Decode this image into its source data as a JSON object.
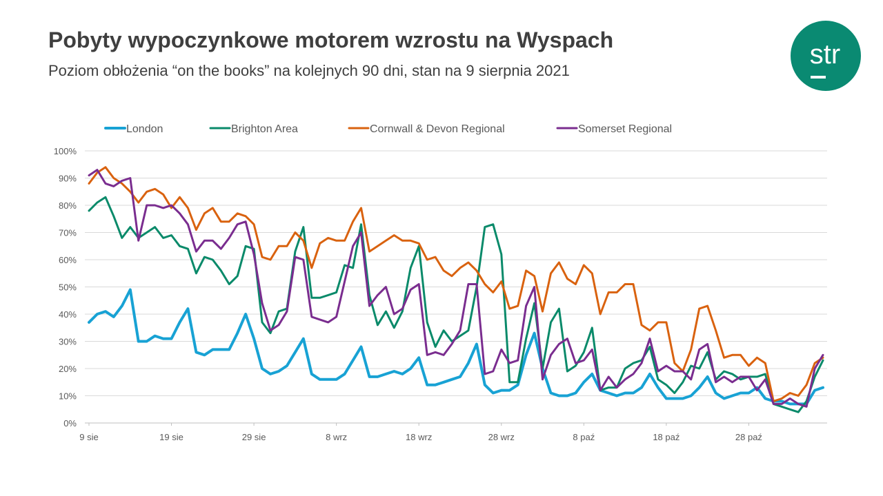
{
  "header": {
    "title": "Pobyty wypoczynkowe motorem wzrostu na Wyspach",
    "subtitle": "Poziom obłożenia “on the books” na kolejnych 90 dni, stan na 9 sierpnia 2021"
  },
  "logo": {
    "text": "str",
    "color": "#0a8a72"
  },
  "chart_data": {
    "type": "line",
    "title": "",
    "xlabel": "",
    "ylabel": "",
    "ylim": [
      0,
      100
    ],
    "y_unit": "%",
    "y_ticks": [
      "0%",
      "10%",
      "20%",
      "30%",
      "40%",
      "50%",
      "60%",
      "70%",
      "80%",
      "90%",
      "100%"
    ],
    "x_start": "9 sie",
    "x_ticks": [
      {
        "day": 0,
        "label": "9 sie"
      },
      {
        "day": 10,
        "label": "19 sie"
      },
      {
        "day": 20,
        "label": "29 sie"
      },
      {
        "day": 30,
        "label": "8 wrz"
      },
      {
        "day": 40,
        "label": "18 wrz"
      },
      {
        "day": 50,
        "label": "28 wrz"
      },
      {
        "day": 60,
        "label": "8 paź"
      },
      {
        "day": 70,
        "label": "18 paź"
      },
      {
        "day": 80,
        "label": "28 paź"
      }
    ],
    "legend_position": "top",
    "grid": true,
    "series": [
      {
        "name": "London",
        "color": "#18a2d4",
        "values": [
          37,
          40,
          41,
          39,
          43,
          49,
          30,
          30,
          32,
          31,
          31,
          37,
          42,
          26,
          25,
          27,
          27,
          27,
          33,
          40,
          31,
          20,
          18,
          19,
          21,
          26,
          31,
          18,
          16,
          16,
          16,
          18,
          23,
          28,
          17,
          17,
          18,
          19,
          18,
          20,
          24,
          14,
          14,
          15,
          16,
          17,
          22,
          29,
          14,
          11,
          12,
          12,
          14,
          25,
          33,
          20,
          11,
          10,
          10,
          11,
          15,
          18,
          12,
          11,
          10,
          11,
          11,
          13,
          18,
          13,
          9,
          9,
          9,
          10,
          13,
          17,
          11,
          9,
          10,
          11,
          11,
          13,
          9,
          8,
          8,
          7,
          7,
          7,
          12,
          13
        ]
      },
      {
        "name": "Brighton Area",
        "color": "#0a8a6a",
        "values": [
          78,
          81,
          83,
          76,
          68,
          72,
          68,
          70,
          72,
          68,
          69,
          65,
          64,
          55,
          61,
          60,
          56,
          51,
          54,
          65,
          64,
          37,
          33,
          41,
          42,
          63,
          72,
          46,
          46,
          47,
          48,
          58,
          57,
          73,
          47,
          36,
          41,
          35,
          41,
          57,
          65,
          37,
          28,
          34,
          30,
          32,
          34,
          50,
          72,
          73,
          62,
          15,
          15,
          31,
          44,
          20,
          37,
          42,
          19,
          21,
          26,
          35,
          12,
          13,
          13,
          20,
          22,
          23,
          28,
          16,
          14,
          11,
          15,
          21,
          20,
          26,
          16,
          19,
          18,
          16,
          17,
          17,
          18,
          7,
          6,
          5,
          4,
          8,
          17,
          23
        ]
      },
      {
        "name": "Cornwall & Devon Regional",
        "color": "#d9620f",
        "values": [
          88,
          92,
          94,
          90,
          88,
          85,
          81,
          85,
          86,
          84,
          79,
          83,
          79,
          71,
          77,
          79,
          74,
          74,
          77,
          76,
          73,
          61,
          60,
          65,
          65,
          70,
          67,
          57,
          66,
          68,
          67,
          67,
          74,
          79,
          63,
          65,
          67,
          69,
          67,
          67,
          66,
          60,
          61,
          56,
          54,
          57,
          59,
          56,
          51,
          48,
          52,
          42,
          43,
          56,
          54,
          41,
          55,
          59,
          53,
          51,
          58,
          55,
          40,
          48,
          48,
          51,
          51,
          36,
          34,
          37,
          37,
          22,
          19,
          27,
          42,
          43,
          34,
          24,
          25,
          25,
          21,
          24,
          22,
          8,
          9,
          11,
          10,
          14,
          22,
          24
        ]
      },
      {
        "name": "Somerset Regional",
        "color": "#7a2d8f",
        "values": [
          91,
          93,
          88,
          87,
          89,
          90,
          67,
          80,
          80,
          79,
          80,
          77,
          73,
          63,
          67,
          67,
          64,
          68,
          73,
          74,
          62,
          44,
          34,
          36,
          41,
          61,
          60,
          39,
          38,
          37,
          39,
          52,
          65,
          70,
          43,
          47,
          50,
          40,
          42,
          49,
          51,
          25,
          26,
          25,
          29,
          34,
          51,
          51,
          18,
          19,
          27,
          22,
          23,
          43,
          50,
          16,
          25,
          29,
          31,
          22,
          23,
          27,
          12,
          17,
          13,
          16,
          18,
          22,
          31,
          19,
          21,
          19,
          19,
          16,
          27,
          29,
          15,
          17,
          15,
          17,
          17,
          12,
          16,
          7,
          7,
          9,
          7,
          6,
          20,
          25
        ]
      }
    ]
  }
}
